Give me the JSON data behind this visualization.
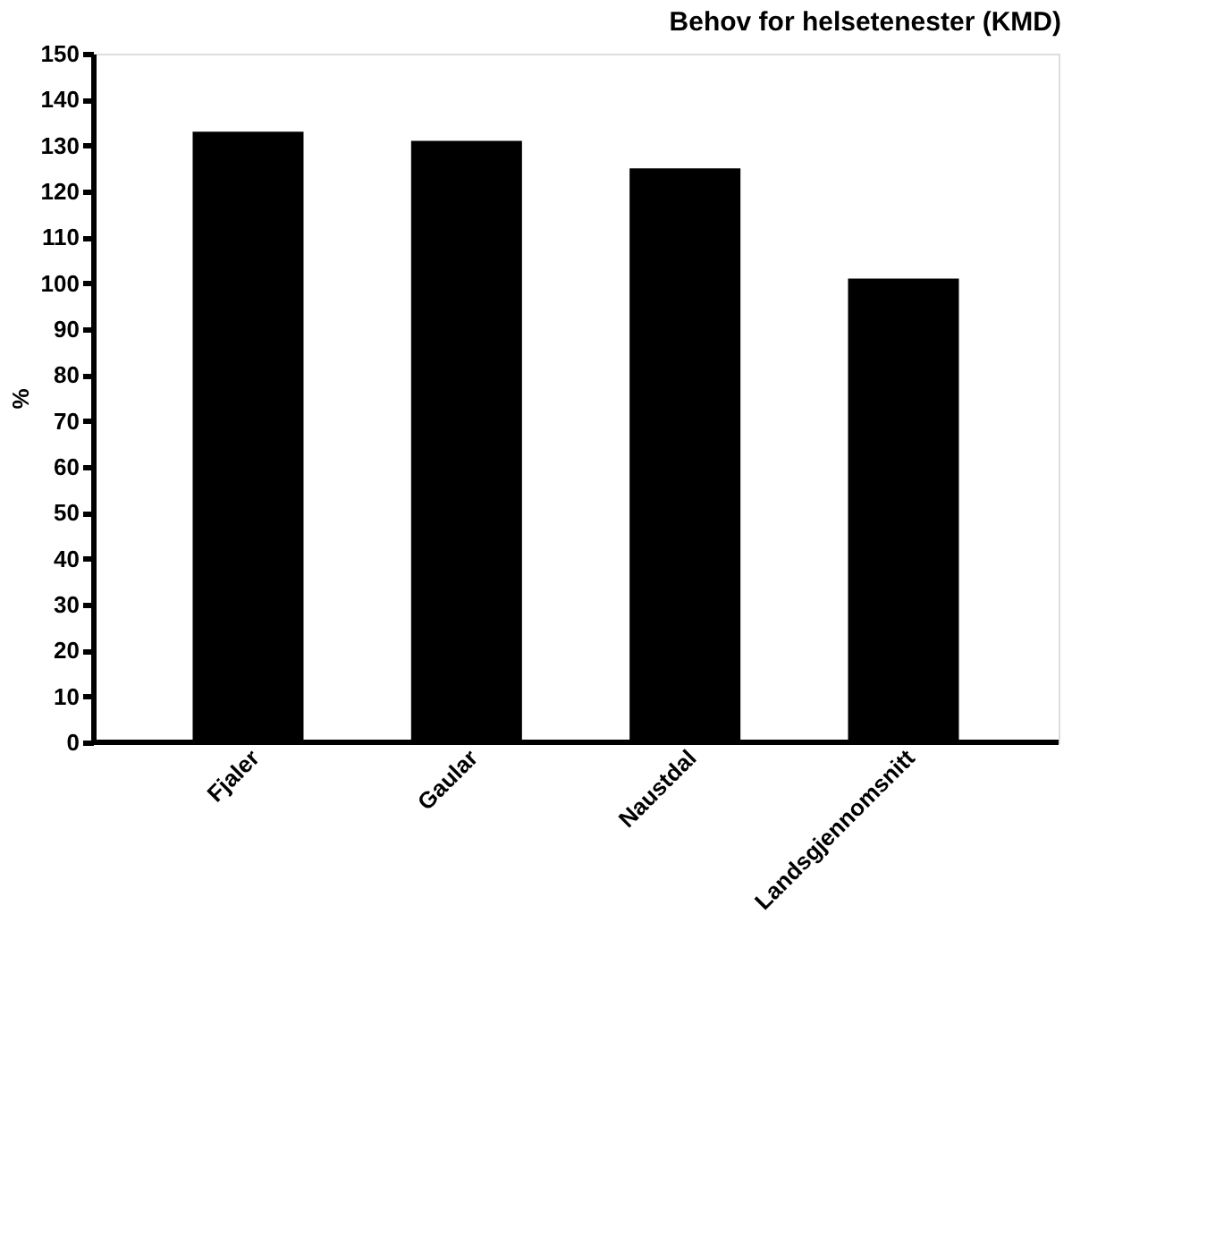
{
  "chart_data": {
    "type": "bar",
    "title": "Behov for helsetenester (KMD)",
    "ylabel": "%",
    "categories": [
      "Fjaler",
      "Gaular",
      "Naustdal",
      "Landsgjennomsnitt"
    ],
    "values": [
      133,
      131,
      125,
      101
    ],
    "color": "#000000",
    "ylim": [
      0,
      150
    ],
    "yticks": [
      0,
      10,
      20,
      30,
      40,
      50,
      60,
      70,
      80,
      90,
      100,
      110,
      120,
      130,
      140,
      150
    ],
    "grid": false
  }
}
